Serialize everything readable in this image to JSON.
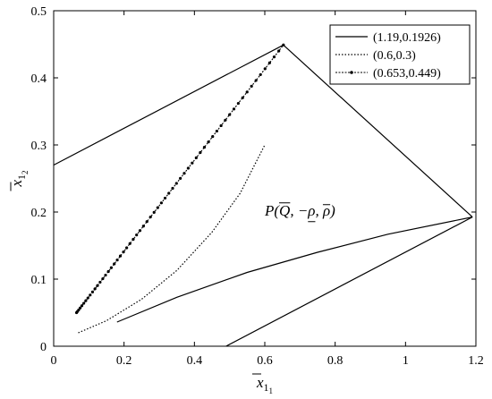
{
  "chart_data": {
    "type": "line",
    "title": "",
    "xlabel": {
      "base": "x",
      "sub": "1",
      "subsub": "1"
    },
    "ylabel": {
      "base": "x",
      "sub": "1",
      "subsub": "2"
    },
    "xlim": [
      0,
      1.2
    ],
    "ylim": [
      0,
      0.5
    ],
    "xticks": [
      0,
      0.2,
      0.4,
      0.6,
      0.8,
      1,
      1.2
    ],
    "xtick_labels": [
      "0",
      "0.2",
      "0.4",
      "0.6",
      "0.8",
      "1",
      "1.2"
    ],
    "yticks": [
      0,
      0.1,
      0.2,
      0.3,
      0.4,
      0.5
    ],
    "ytick_labels": [
      "0",
      "0.1",
      "0.2",
      "0.3",
      "0.4",
      "0.5"
    ],
    "grid": false,
    "legend_position": "top-right",
    "annotation": {
      "text": "P(Q, −ρ, ρ)",
      "x": 0.6,
      "y": 0.195
    },
    "series": [
      {
        "name": "(1.19,0.1926)",
        "style": "solid",
        "color": "#000000",
        "segments": [
          [
            [
              0,
              0.27
            ],
            [
              0.653,
              0.449
            ]
          ],
          [
            [
              0.653,
              0.449
            ],
            [
              1.19,
              0.1926
            ]
          ],
          [
            [
              0.18,
              0.036
            ],
            [
              0.35,
              0.073
            ],
            [
              0.55,
              0.11
            ],
            [
              0.75,
              0.14
            ],
            [
              0.95,
              0.167
            ],
            [
              1.19,
              0.1926
            ]
          ],
          [
            [
              0.49,
              0
            ],
            [
              1.19,
              0.1926
            ]
          ]
        ]
      },
      {
        "name": "(0.6,0.3)",
        "style": "dotted",
        "color": "#000000",
        "segments": [
          [
            [
              0.07,
              0.02
            ],
            [
              0.15,
              0.038
            ],
            [
              0.25,
              0.07
            ],
            [
              0.35,
              0.113
            ],
            [
              0.45,
              0.17
            ],
            [
              0.53,
              0.228
            ],
            [
              0.6,
              0.3
            ]
          ]
        ]
      },
      {
        "name": "(0.653,0.449)",
        "style": "dash-dot-markers",
        "color": "#000000",
        "segments": [
          [
            [
              0.065,
              0.05
            ],
            [
              0.653,
              0.449
            ]
          ]
        ]
      }
    ]
  }
}
